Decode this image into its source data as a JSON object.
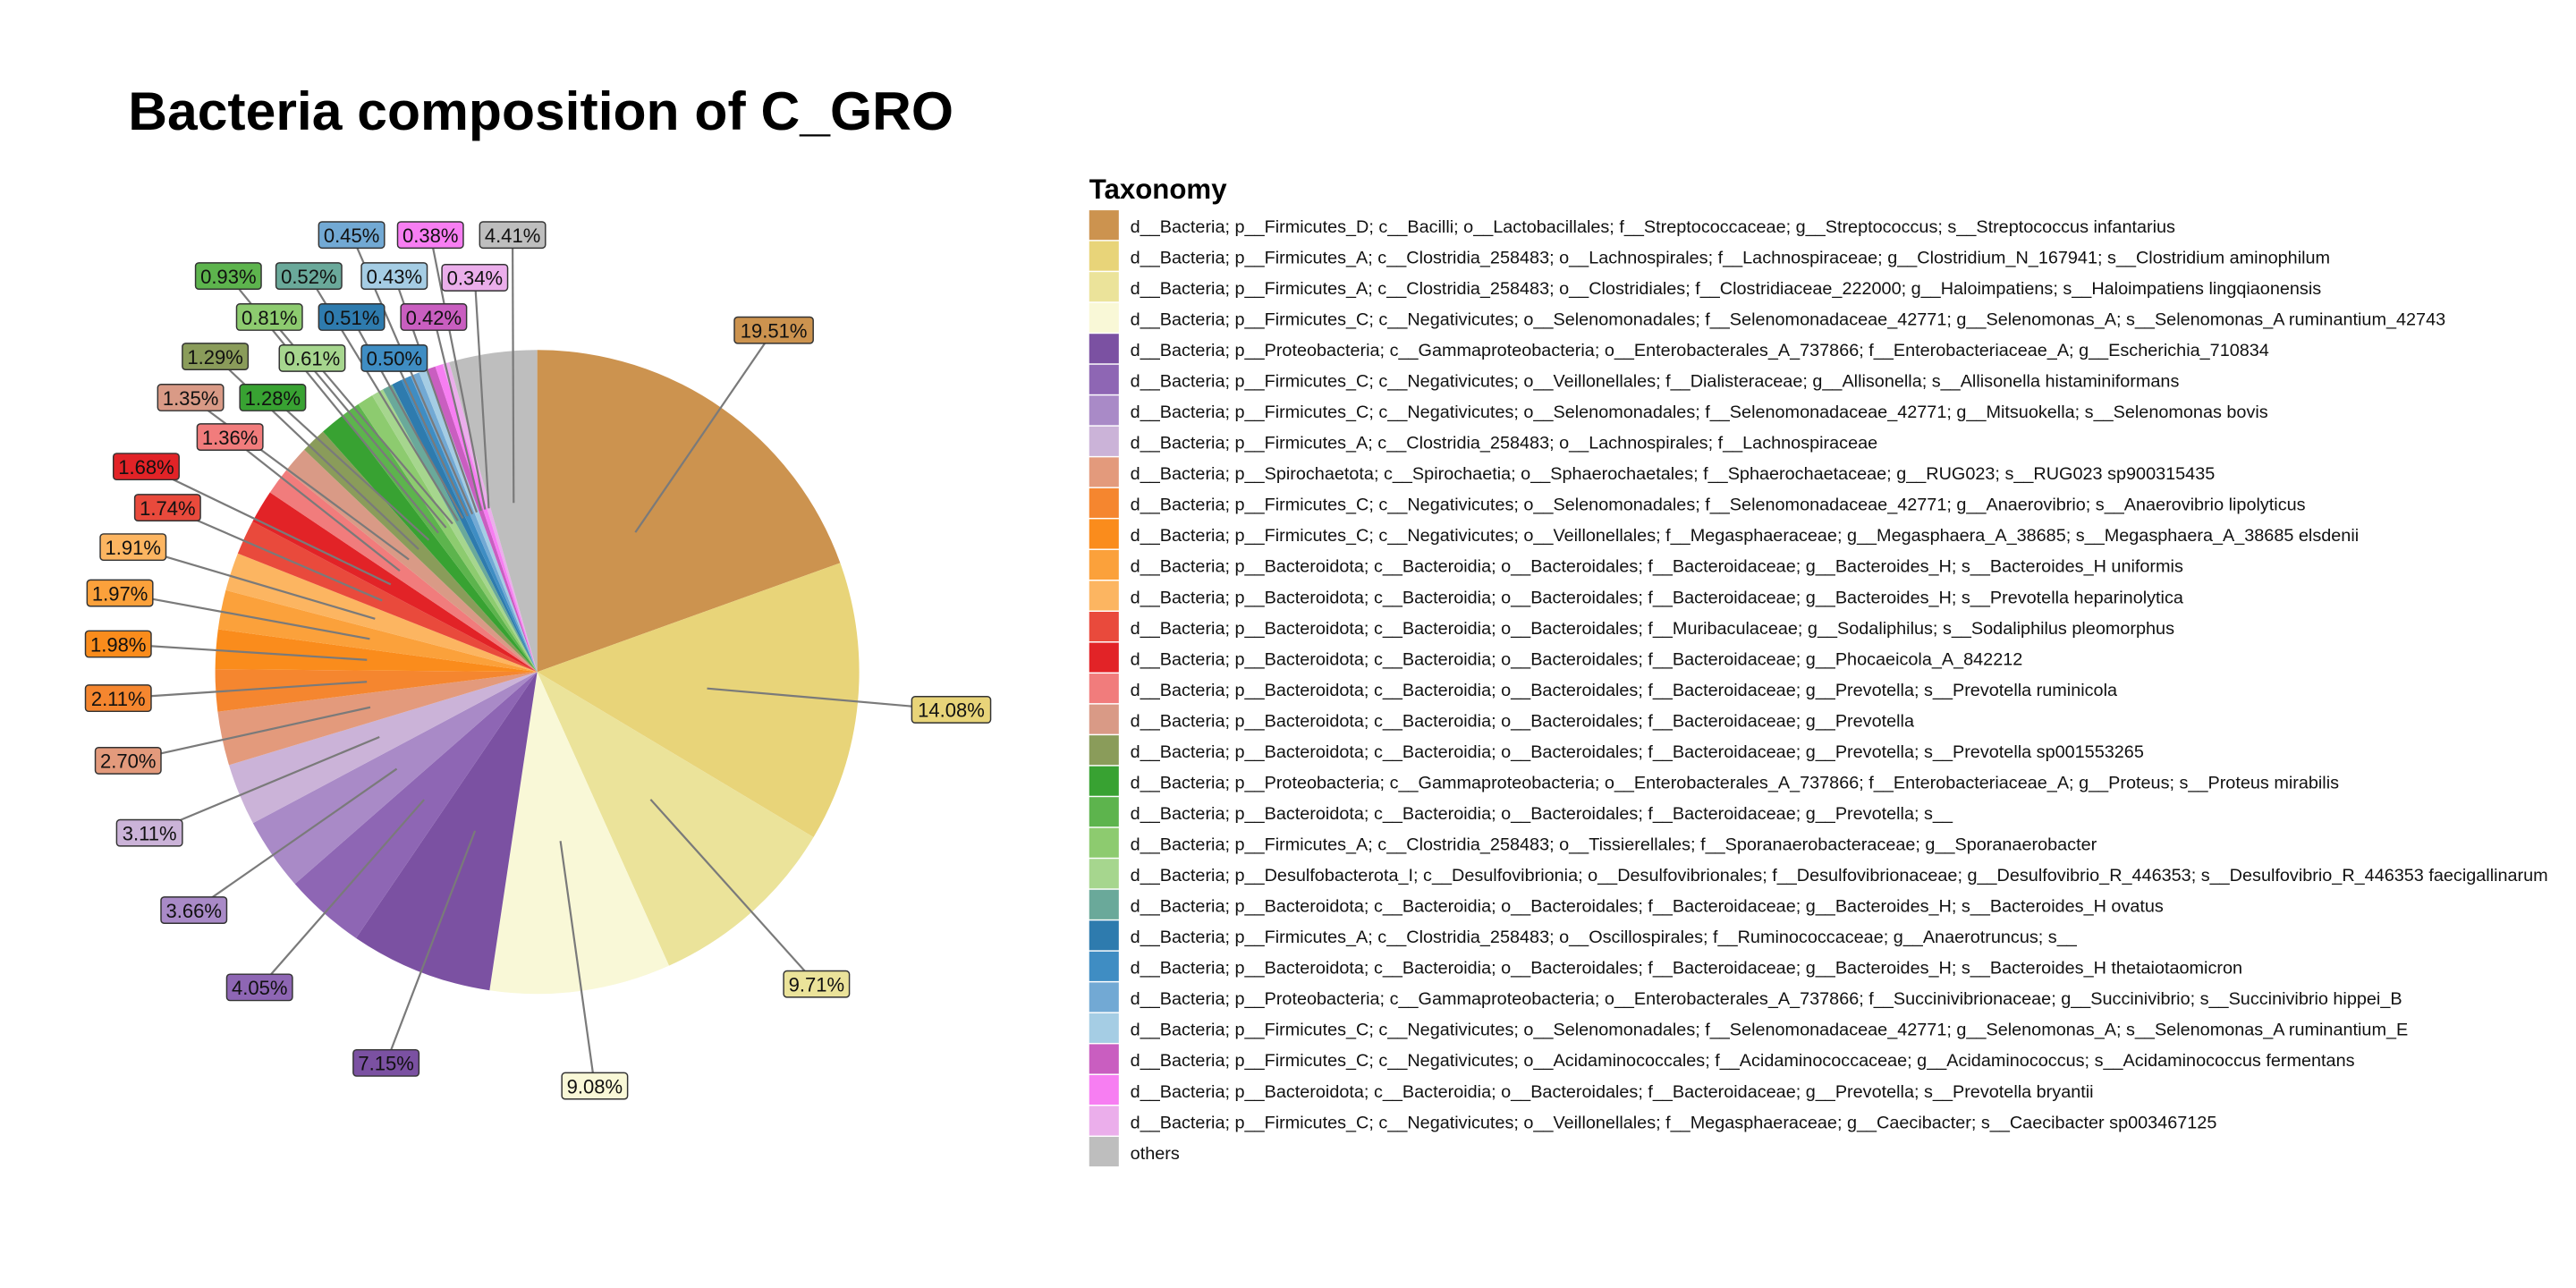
{
  "chart_data": {
    "type": "pie",
    "title": "Bacteria composition of C_GRO",
    "legend_title": "Taxonomy",
    "legend_position": "right",
    "slices": [
      {
        "name": "d__Bacteria; p__Firmicutes_D; c__Bacilli; o__Lactobacillales; f__Streptococcaceae; g__Streptococcus; s__Streptococcus infantarius",
        "value": 19.51,
        "label": "19.51%",
        "color": "#CC934F"
      },
      {
        "name": "d__Bacteria; p__Firmicutes_A; c__Clostridia_258483; o__Lachnospirales; f__Lachnospiraceae; g__Clostridium_N_167941; s__Clostridium aminophilum",
        "value": 14.08,
        "label": "14.08%",
        "color": "#E8D479"
      },
      {
        "name": "d__Bacteria; p__Firmicutes_A; c__Clostridia_258483; o__Clostridiales; f__Clostridiaceae_222000; g__Haloimpatiens; s__Haloimpatiens lingqiaonensis",
        "value": 9.71,
        "label": "9.71%",
        "color": "#EBE39A"
      },
      {
        "name": "d__Bacteria; p__Firmicutes_C; c__Negativicutes; o__Selenomonadales; f__Selenomonadaceae_42771; g__Selenomonas_A; s__Selenomonas_A ruminantium_42743",
        "value": 9.08,
        "label": "9.08%",
        "color": "#F9F8D7"
      },
      {
        "name": "d__Bacteria; p__Proteobacteria; c__Gammaproteobacteria; o__Enterobacterales_A_737866; f__Enterobacteriaceae_A; g__Escherichia_710834",
        "value": 7.15,
        "label": "7.15%",
        "color": "#7B51A2"
      },
      {
        "name": "d__Bacteria; p__Firmicutes_C; c__Negativicutes; o__Veillonellales; f__Dialisteraceae; g__Allisonella; s__Allisonella histaminiformans",
        "value": 4.05,
        "label": "4.05%",
        "color": "#8E66B4"
      },
      {
        "name": "d__Bacteria; p__Firmicutes_C; c__Negativicutes; o__Selenomonadales; f__Selenomonadaceae_42771; g__Mitsuokella; s__Selenomonas bovis",
        "value": 3.66,
        "label": "3.66%",
        "color": "#A98AC7"
      },
      {
        "name": "d__Bacteria; p__Firmicutes_A; c__Clostridia_258483; o__Lachnospirales; f__Lachnospiraceae",
        "value": 3.11,
        "label": "3.11%",
        "color": "#CBB3D8"
      },
      {
        "name": "d__Bacteria; p__Spirochaetota; c__Spirochaetia; o__Sphaerochaetales; f__Sphaerochaetaceae; g__RUG023; s__RUG023 sp900315435",
        "value": 2.7,
        "label": "2.70%",
        "color": "#E39A7C"
      },
      {
        "name": "d__Bacteria; p__Firmicutes_C; c__Negativicutes; o__Selenomonadales; f__Selenomonadaceae_42771; g__Anaerovibrio; s__Anaerovibrio lipolyticus",
        "value": 2.11,
        "label": "2.11%",
        "color": "#F5862F"
      },
      {
        "name": "d__Bacteria; p__Firmicutes_C; c__Negativicutes; o__Veillonellales; f__Megasphaeraceae; g__Megasphaera_A_38685; s__Megasphaera_A_38685 elsdenii",
        "value": 1.98,
        "label": "1.98%",
        "color": "#FA8C1C"
      },
      {
        "name": "d__Bacteria; p__Bacteroidota; c__Bacteroidia; o__Bacteroidales; f__Bacteroidaceae; g__Bacteroides_H; s__Bacteroides_H uniformis",
        "value": 1.97,
        "label": "1.97%",
        "color": "#FBA13B"
      },
      {
        "name": "d__Bacteria; p__Bacteroidota; c__Bacteroidia; o__Bacteroidales; f__Bacteroidaceae; g__Bacteroides_H; s__Prevotella heparinolytica",
        "value": 1.91,
        "label": "1.91%",
        "color": "#FCB561"
      },
      {
        "name": "d__Bacteria; p__Bacteroidota; c__Bacteroidia; o__Bacteroidales; f__Muribaculaceae; g__Sodaliphilus; s__Sodaliphilus pleomorphus",
        "value": 1.74,
        "label": "1.74%",
        "color": "#E94A3C"
      },
      {
        "name": "d__Bacteria; p__Bacteroidota; c__Bacteroidia; o__Bacteroidales; f__Bacteroidaceae; g__Phocaeicola_A_842212",
        "value": 1.68,
        "label": "1.68%",
        "color": "#E22327"
      },
      {
        "name": "d__Bacteria; p__Bacteroidota; c__Bacteroidia; o__Bacteroidales; f__Bacteroidaceae; g__Prevotella; s__Prevotella ruminicola",
        "value": 1.36,
        "label": "1.36%",
        "color": "#F17C7C"
      },
      {
        "name": "d__Bacteria; p__Bacteroidota; c__Bacteroidia; o__Bacteroidales; f__Bacteroidaceae; g__Prevotella",
        "value": 1.35,
        "label": "1.35%",
        "color": "#D99A86"
      },
      {
        "name": "d__Bacteria; p__Bacteroidota; c__Bacteroidia; o__Bacteroidales; f__Bacteroidaceae; g__Prevotella; s__Prevotella sp001553265",
        "value": 1.29,
        "label": "1.29%",
        "color": "#8A9C5A"
      },
      {
        "name": "d__Bacteria; p__Proteobacteria; c__Gammaproteobacteria; o__Enterobacterales_A_737866; f__Enterobacteriaceae_A; g__Proteus; s__Proteus mirabilis",
        "value": 1.28,
        "label": "1.28%",
        "color": "#38A232"
      },
      {
        "name": "d__Bacteria; p__Bacteroidota; c__Bacteroidia; o__Bacteroidales; f__Bacteroidaceae; g__Prevotella; s__",
        "value": 0.93,
        "label": "0.93%",
        "color": "#5DB44D"
      },
      {
        "name": "d__Bacteria; p__Firmicutes_A; c__Clostridia_258483; o__Tissierellales; f__Sporanaerobacteraceae; g__Sporanaerobacter",
        "value": 0.81,
        "label": "0.81%",
        "color": "#8DCB6F"
      },
      {
        "name": "d__Bacteria; p__Desulfobacterota_I; c__Desulfovibrionia; o__Desulfovibrionales; f__Desulfovibrionaceae; g__Desulfovibrio_R_446353; s__Desulfovibrio_R_446353 faecigallinarum",
        "value": 0.61,
        "label": "0.61%",
        "color": "#A6D68E"
      },
      {
        "name": "d__Bacteria; p__Bacteroidota; c__Bacteroidia; o__Bacteroidales; f__Bacteroidaceae; g__Bacteroides_H; s__Bacteroides_H ovatus",
        "value": 0.52,
        "label": "0.52%",
        "color": "#6AA99A"
      },
      {
        "name": "d__Bacteria; p__Firmicutes_A; c__Clostridia_258483; o__Oscillospirales; f__Ruminococcaceae; g__Anaerotruncus; s__",
        "value": 0.51,
        "label": "0.51%",
        "color": "#2E7BAE"
      },
      {
        "name": "d__Bacteria; p__Bacteroidota; c__Bacteroidia; o__Bacteroidales; f__Bacteroidaceae; g__Bacteroides_H; s__Bacteroides_H thetaiotaomicron",
        "value": 0.5,
        "label": "0.50%",
        "color": "#3F8DC3"
      },
      {
        "name": "d__Bacteria; p__Proteobacteria; c__Gammaproteobacteria; o__Enterobacterales_A_737866; f__Succinivibrionaceae; g__Succinivibrio; s__Succinivibrio hippei_B",
        "value": 0.45,
        "label": "0.45%",
        "color": "#72A9D4"
      },
      {
        "name": "d__Bacteria; p__Firmicutes_C; c__Negativicutes; o__Selenomonadales; f__Selenomonadaceae_42771; g__Selenomonas_A; s__Selenomonas_A ruminantium_E",
        "value": 0.43,
        "label": "0.43%",
        "color": "#A5CDE4"
      },
      {
        "name": "d__Bacteria; p__Firmicutes_C; c__Negativicutes; o__Acidaminococcales; f__Acidaminococcaceae; g__Acidaminococcus; s__Acidaminococcus fermentans",
        "value": 0.42,
        "label": "0.42%",
        "color": "#C95EC0"
      },
      {
        "name": "d__Bacteria; p__Bacteroidota; c__Bacteroidia; o__Bacteroidales; f__Bacteroidaceae; g__Prevotella; s__Prevotella bryantii",
        "value": 0.38,
        "label": "0.38%",
        "color": "#F77EF2"
      },
      {
        "name": "d__Bacteria; p__Firmicutes_C; c__Negativicutes; o__Veillonellales; f__Megasphaeraceae; g__Caecibacter; s__Caecibacter sp003467125",
        "value": 0.34,
        "label": "0.34%",
        "color": "#EBAEEB"
      },
      {
        "name": "others",
        "value": 4.41,
        "label": "4.41%",
        "color": "#BEBEBE"
      }
    ]
  }
}
